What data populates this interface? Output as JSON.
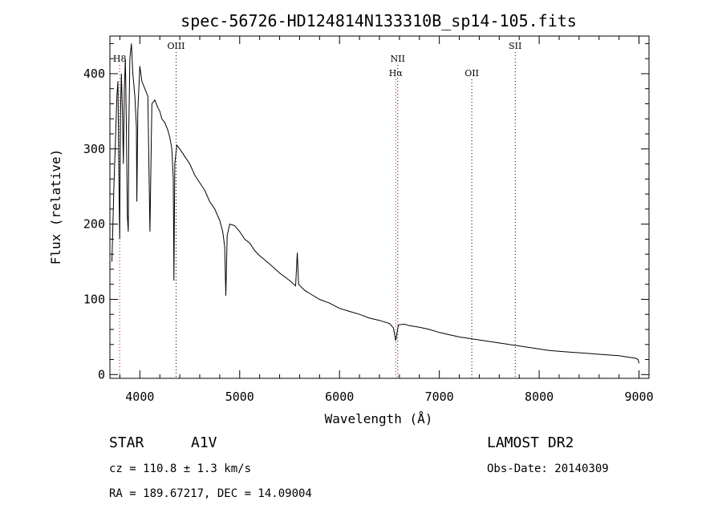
{
  "chart_data": {
    "type": "line",
    "title": "spec-56726-HD124814N133310B_sp14-105.fits",
    "xlabel": "Wavelength (Å)",
    "ylabel": "Flux (relative)",
    "xlim": [
      3700,
      9100
    ],
    "ylim": [
      -5,
      450
    ],
    "xticks": [
      4000,
      5000,
      6000,
      7000,
      8000,
      9000
    ],
    "yticks": [
      0,
      100,
      200,
      300,
      400
    ],
    "series": [
      {
        "name": "flux",
        "color": "#000000",
        "x": [
          3720,
          3740,
          3760,
          3770,
          3780,
          3790,
          3798,
          3805,
          3815,
          3825,
          3835,
          3845,
          3855,
          3865,
          3875,
          3884,
          3890,
          3900,
          3915,
          3930,
          3950,
          3965,
          3970,
          3980,
          4000,
          4020,
          4050,
          4080,
          4101,
          4120,
          4150,
          4180,
          4200,
          4220,
          4250,
          4280,
          4300,
          4320,
          4335,
          4341,
          4350,
          4370,
          4400,
          4450,
          4500,
          4550,
          4600,
          4650,
          4700,
          4750,
          4800,
          4830,
          4850,
          4861,
          4875,
          4900,
          4950,
          5000,
          5050,
          5100,
          5150,
          5200,
          5300,
          5400,
          5500,
          5560,
          5577,
          5590,
          5650,
          5700,
          5800,
          5900,
          6000,
          6100,
          6200,
          6300,
          6400,
          6500,
          6540,
          6563,
          6590,
          6650,
          6700,
          6800,
          6900,
          7000,
          7100,
          7200,
          7300,
          7400,
          7500,
          7600,
          7700,
          7800,
          7900,
          8000,
          8100,
          8200,
          8300,
          8400,
          8500,
          8600,
          8700,
          8800,
          8900,
          8960,
          8990,
          9000
        ],
        "y": [
          150,
          250,
          330,
          370,
          390,
          260,
          180,
          340,
          400,
          350,
          280,
          380,
          420,
          330,
          210,
          190,
          330,
          420,
          440,
          400,
          370,
          330,
          230,
          350,
          410,
          390,
          380,
          370,
          190,
          360,
          365,
          355,
          350,
          340,
          335,
          325,
          315,
          300,
          260,
          125,
          280,
          305,
          300,
          290,
          280,
          265,
          255,
          245,
          230,
          220,
          205,
          190,
          170,
          105,
          185,
          200,
          198,
          190,
          180,
          175,
          165,
          158,
          147,
          135,
          125,
          118,
          162,
          120,
          112,
          108,
          100,
          95,
          88,
          84,
          80,
          75,
          72,
          68,
          62,
          45,
          66,
          67,
          65,
          63,
          60,
          56,
          53,
          50,
          48,
          46,
          44,
          42,
          40,
          38,
          36,
          34,
          32,
          31,
          30,
          29,
          28,
          27,
          26,
          25,
          23,
          22,
          20,
          15
        ]
      }
    ],
    "spectral_lines": [
      {
        "label": "H8",
        "wavelength": 3798,
        "color": "#c00000",
        "row": 1
      },
      {
        "label": "OIII",
        "wavelength": 4363,
        "color": "#000000",
        "row": 0
      },
      {
        "label": "NII",
        "wavelength": 6583,
        "color": "#000000",
        "row": 1
      },
      {
        "label": "Hα",
        "wavelength": 6563,
        "color": "#c00000",
        "row": 2
      },
      {
        "label": "OII",
        "wavelength": 7325,
        "color": "#000000",
        "row": 2
      },
      {
        "label": "SII",
        "wavelength": 7760,
        "color": "#000000",
        "row": 0
      }
    ]
  },
  "info": {
    "class_label": "STAR",
    "subclass": "A1V",
    "survey": "LAMOST DR2",
    "cz_text": "cz = 110.8 ± 1.3 km/s",
    "obs_date_text": "Obs-Date: 20140309",
    "radec_text": "RA = 189.67217, DEC =  14.09004"
  }
}
